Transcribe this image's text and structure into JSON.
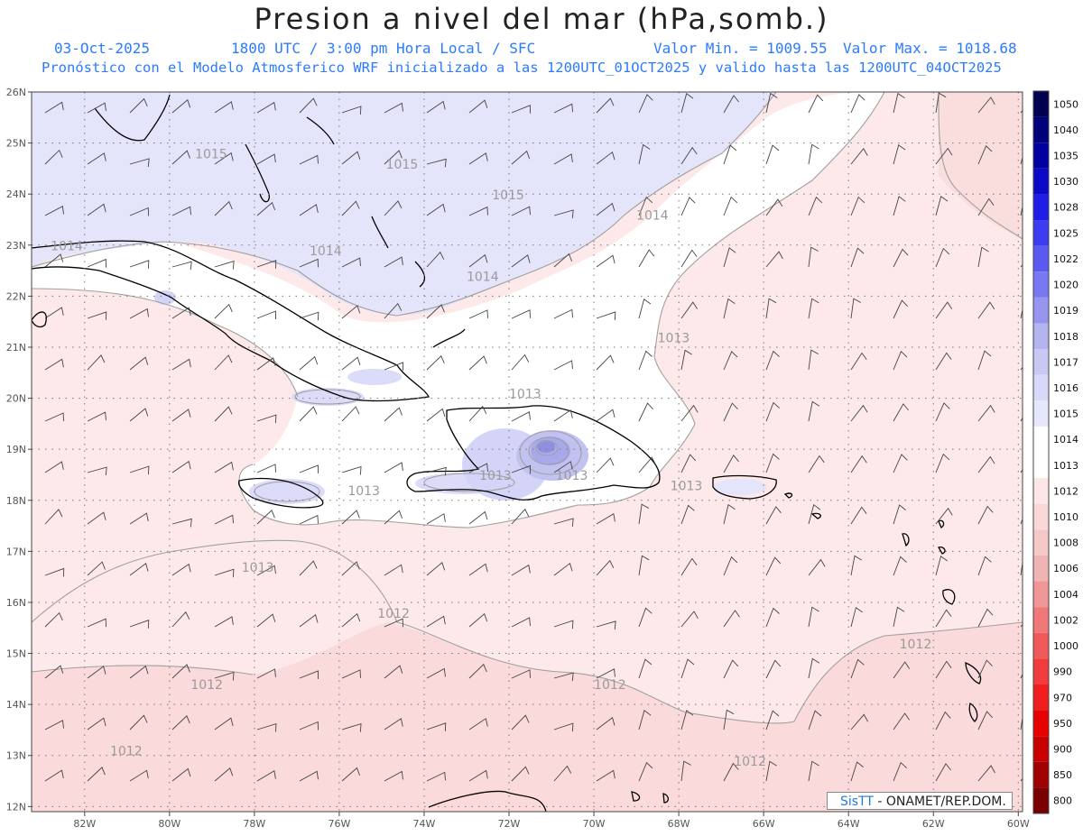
{
  "title": "Presion a nivel del mar (hPa,somb.)",
  "date": "03-Oct-2025",
  "time": "1800 UTC / 3:00 pm Hora Local / SFC",
  "min_label": "Valor Min. = 1009.55",
  "max_label": "Valor Max. = 1018.68",
  "model_line": "Pronóstico con el Modelo Atmosferico WRF inicializado a las 1200UTC_01OCT2025 y valido hasta las  1200UTC_04OCT2025",
  "credit": {
    "brand": "SisTT",
    "rest": "- ONAMET/REP.DOM."
  },
  "lon_ticks": [
    "82W",
    "80W",
    "78W",
    "76W",
    "74W",
    "72W",
    "70W",
    "68W",
    "66W",
    "64W",
    "62W",
    "60W"
  ],
  "lat_ticks": [
    "26N",
    "25N",
    "24N",
    "23N",
    "22N",
    "21N",
    "20N",
    "19N",
    "18N",
    "17N",
    "16N",
    "15N",
    "14N",
    "13N",
    "12N"
  ],
  "colorbar": {
    "levels": [
      "1050",
      "1040",
      "1035",
      "1030",
      "1028",
      "1025",
      "1022",
      "1020",
      "1019",
      "1018",
      "1017",
      "1016",
      "1015",
      "1014",
      "1013",
      "1012",
      "1010",
      "1008",
      "1006",
      "1004",
      "1002",
      "1000",
      "990",
      "970",
      "950",
      "900",
      "850",
      "800"
    ],
    "colors": [
      "#000050",
      "#00007a",
      "#0000a0",
      "#0a0ac8",
      "#1e1ee6",
      "#3c3cf0",
      "#5a5af0",
      "#7878f0",
      "#9696f0",
      "#b4b4f0",
      "#c8c8f5",
      "#d8d8fa",
      "#e6e6fc",
      "#ffffff",
      "#ffffff",
      "#fce6e6",
      "#fad8d8",
      "#f5c8c8",
      "#f0b4b4",
      "#f09696",
      "#f07878",
      "#f05a5a",
      "#f03c3c",
      "#f01e1e",
      "#e60000",
      "#c80000",
      "#a00000",
      "#780000"
    ]
  },
  "isobar_labels": [
    {
      "text": "1015",
      "lon": -79.4,
      "lat": 24.7
    },
    {
      "text": "1015",
      "lon": -74.9,
      "lat": 24.5
    },
    {
      "text": "1015",
      "lon": -72.4,
      "lat": 23.9
    },
    {
      "text": "1014",
      "lon": -82.8,
      "lat": 22.9
    },
    {
      "text": "1014",
      "lon": -76.7,
      "lat": 22.8
    },
    {
      "text": "1014",
      "lon": -73.0,
      "lat": 22.3
    },
    {
      "text": "1014",
      "lon": -69.0,
      "lat": 23.5
    },
    {
      "text": "1013",
      "lon": -68.5,
      "lat": 21.1
    },
    {
      "text": "1013",
      "lon": -72.0,
      "lat": 20.0
    },
    {
      "text": "1013",
      "lon": -75.8,
      "lat": 18.1
    },
    {
      "text": "1013",
      "lon": -72.7,
      "lat": 18.4
    },
    {
      "text": "1013",
      "lon": -70.9,
      "lat": 18.4
    },
    {
      "text": "1013",
      "lon": -68.2,
      "lat": 18.2
    },
    {
      "text": "1013",
      "lon": -78.3,
      "lat": 16.6
    },
    {
      "text": "1012",
      "lon": -75.1,
      "lat": 15.7
    },
    {
      "text": "1012",
      "lon": -79.5,
      "lat": 14.3
    },
    {
      "text": "1012",
      "lon": -70.0,
      "lat": 14.3
    },
    {
      "text": "1012",
      "lon": -81.4,
      "lat": 13.0
    },
    {
      "text": "1012",
      "lon": -66.7,
      "lat": 12.8
    },
    {
      "text": "1012",
      "lon": -62.8,
      "lat": 15.1
    }
  ]
}
